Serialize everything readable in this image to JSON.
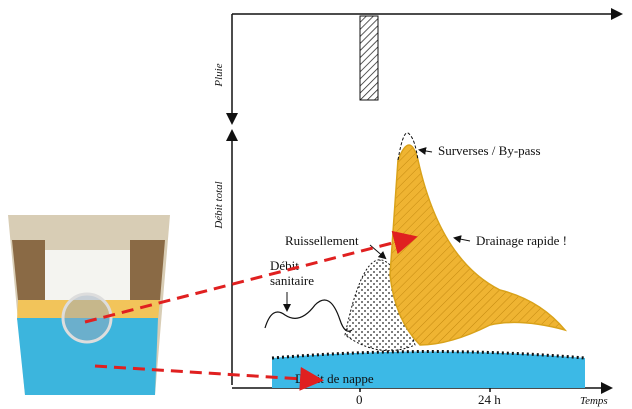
{
  "axes": {
    "y_top": "Pluie",
    "y_bottom": "Débit total",
    "x": "Temps",
    "x_ticks": [
      "0",
      "24 h"
    ]
  },
  "labels": {
    "overflow": "Surverses / By-pass",
    "runoff": "Ruissellement",
    "fast_drainage": "Drainage rapide !",
    "sanitary": [
      "Débit",
      "sanitaire"
    ],
    "groundwater": "Débit de nappe"
  }
}
